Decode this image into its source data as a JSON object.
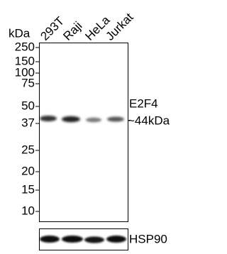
{
  "lanes": [
    "293T",
    "Raji",
    "HeLa",
    "Jurkat"
  ],
  "unit": "kDa",
  "markers": [
    "250",
    "150",
    "100",
    "75",
    "50",
    "37",
    "25",
    "20",
    "15",
    "10"
  ],
  "target": {
    "name": "E2F4",
    "size": "~44kDa"
  },
  "loading_control": "HSP90"
}
